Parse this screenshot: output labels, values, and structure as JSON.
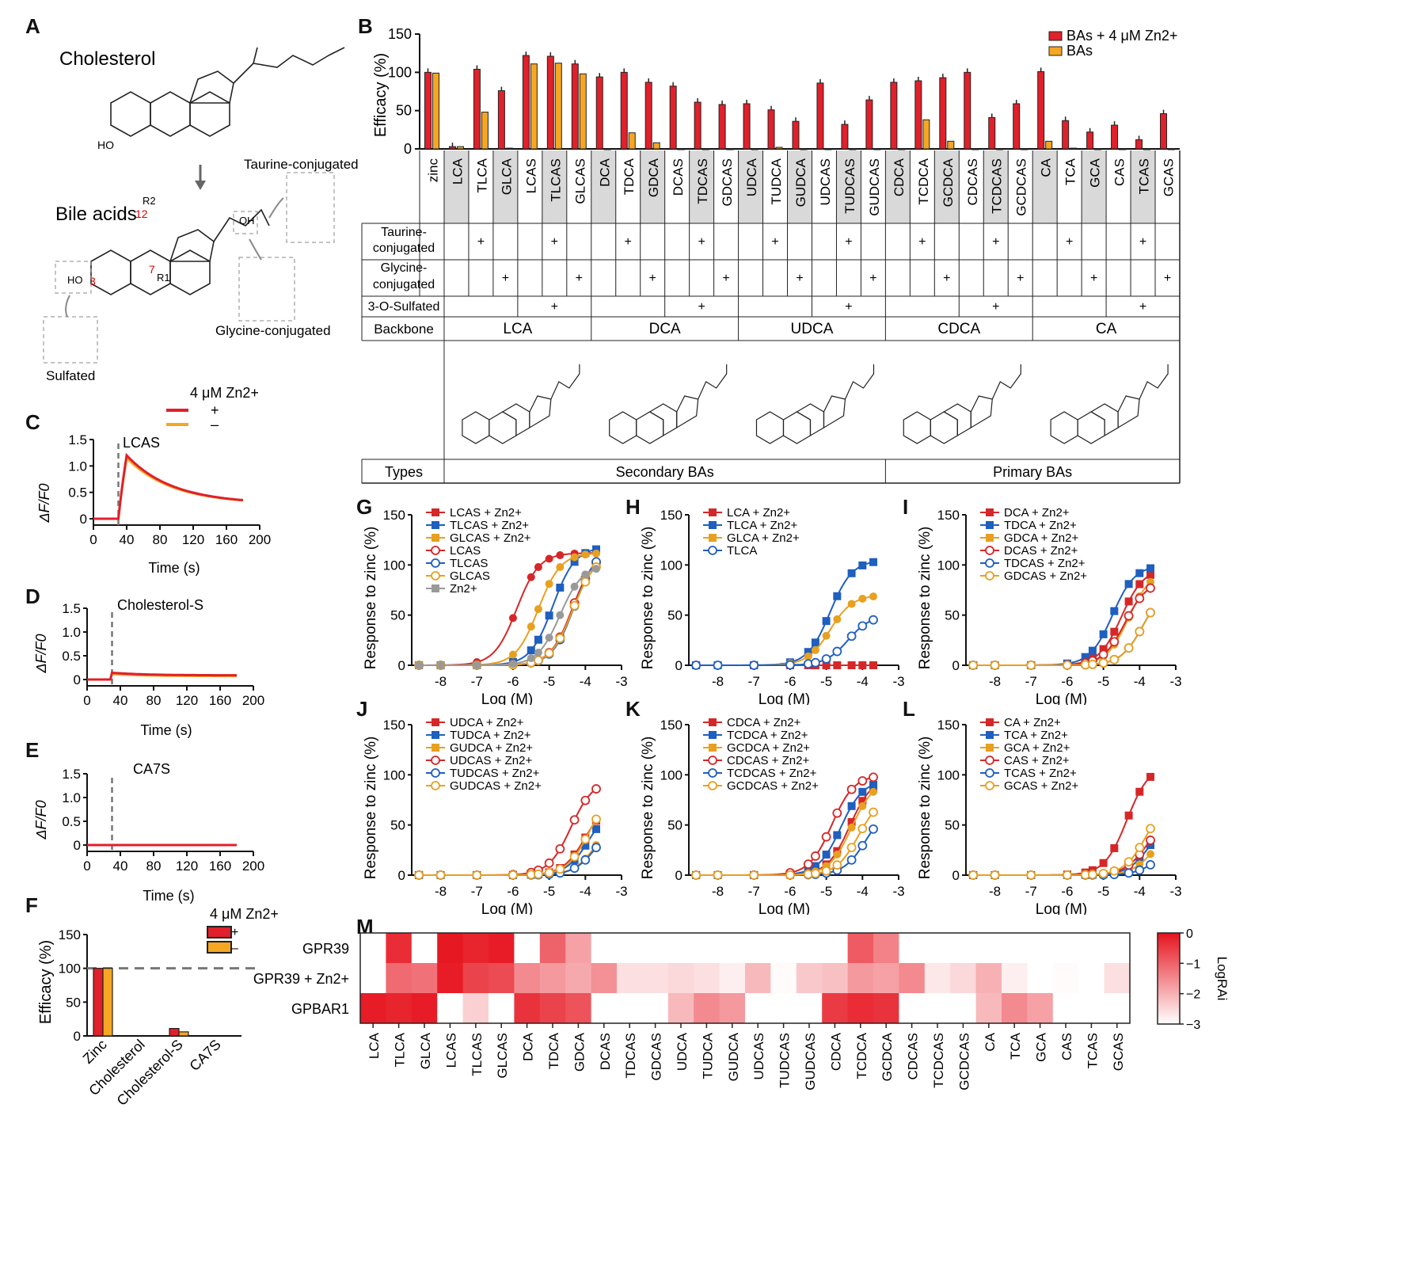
{
  "figure": {
    "panels": {
      "A": "A",
      "B": "B",
      "C": "C",
      "D": "D",
      "E": "E",
      "F": "F",
      "G": "G",
      "H": "H",
      "I": "I",
      "J": "J",
      "K": "K",
      "L": "L",
      "M": "M"
    }
  },
  "panel_a": {
    "cholesterol": "Cholesterol",
    "bile_acids": "Bile acids",
    "taurine": "Taurine-conjugated",
    "glycine": "Glycine-conjugated",
    "sulfated": "Sulfated",
    "pos3": "3",
    "pos7": "7",
    "pos12": "12",
    "r1": "R1",
    "r2": "R2",
    "ho": "HO",
    "oh": "OH"
  },
  "panel_b": {
    "ylabel": "Efficacy (%)",
    "legend": [
      "BAs + 4 μM Zn2+",
      "BAs"
    ],
    "colors": {
      "zinc": "#e0202a",
      "bas": "#f5a623"
    },
    "compounds": [
      "zinc",
      "LCA",
      "TLCA",
      "GLCA",
      "LCAS",
      "TLCAS",
      "GLCAS",
      "DCA",
      "TDCA",
      "GDCA",
      "DCAS",
      "TDCAS",
      "GDCAS",
      "UDCA",
      "TUDCA",
      "GUDCA",
      "UDCAS",
      "TUDCAS",
      "GUDCAS",
      "CDCA",
      "TCDCA",
      "GCDCA",
      "CDCAS",
      "TCDCAS",
      "GCDCAS",
      "CA",
      "TCA",
      "GCA",
      "CAS",
      "TCAS",
      "GCAS"
    ],
    "with_zinc": [
      100,
      3,
      104,
      76,
      122,
      121,
      111,
      94,
      100,
      87,
      82,
      61,
      58,
      59,
      51,
      36,
      86,
      32,
      64,
      87,
      89,
      93,
      100,
      41,
      59,
      101,
      37,
      22,
      31,
      12,
      46
    ],
    "without_zinc": [
      99,
      3,
      48,
      1,
      111,
      112,
      98,
      0,
      21,
      8,
      0,
      0,
      0,
      0,
      2,
      0,
      0,
      0,
      0,
      0,
      38,
      10,
      0,
      0,
      0,
      10,
      1,
      0,
      0,
      0,
      0
    ],
    "yticks": [
      "0",
      "50",
      "100",
      "150"
    ],
    "row_labels": {
      "taurine": "Taurine-conjugated",
      "glycine": "Glycine-conjugated",
      "sulfated": "3-O-Sulfated",
      "backbone": "Backbone",
      "types": "Types"
    },
    "backbones": [
      "LCA",
      "DCA",
      "UDCA",
      "CDCA",
      "CA"
    ],
    "types": [
      "Secondary BAs",
      "Primary BAs"
    ],
    "plus": "+"
  },
  "panel_c": {
    "label": "LCAS",
    "legend_title": "4 μM Zn2+",
    "plus": "+",
    "minus": "–",
    "ylabel": "ΔF/F0",
    "xlabel": "Time (s)",
    "xticks": [
      "0",
      "40",
      "80",
      "120",
      "160",
      "200"
    ],
    "yticks": [
      "0",
      "0.5",
      "1.0",
      "1.5"
    ]
  },
  "panel_d": {
    "label": "Cholesterol-S",
    "ylabel": "ΔF/F0",
    "xlabel": "Time (s)"
  },
  "panel_e": {
    "label": "CA7S",
    "ylabel": "ΔF/F0",
    "xlabel": "Time (s)"
  },
  "panel_f": {
    "legend_title": "4 μM Zn2+",
    "plus": "+",
    "minus": "–",
    "ylabel": "Efficacy (%)",
    "categories": [
      "Zinc",
      "Cholesterol",
      "Cholesterol-S",
      "CA7S"
    ],
    "with_zinc": [
      100,
      0,
      11,
      0
    ],
    "without_zinc": [
      100,
      0,
      6,
      0
    ],
    "yticks": [
      "0",
      "50",
      "100",
      "150"
    ]
  },
  "dose_panels": {
    "ylabel": "Response to zinc (%)",
    "xlabel": "Log (M)",
    "xticks": [
      "-8",
      "-7",
      "-6",
      "-5",
      "-4",
      "-3"
    ],
    "yticks": [
      "0",
      "50",
      "100",
      "150"
    ]
  },
  "chart_data": [
    {
      "panel": "G",
      "type": "line",
      "series": [
        {
          "name": "LCAS + Zn2+",
          "color": "#d62728",
          "filled": true,
          "ec50": -5.9,
          "top": 112
        },
        {
          "name": "TLCAS + Zn2+",
          "color": "#1f5fbf",
          "filled": true,
          "ec50": -4.9,
          "top": 118
        },
        {
          "name": "GLCAS + Zn2+",
          "color": "#e8a020",
          "filled": true,
          "ec50": -5.3,
          "top": 112
        },
        {
          "name": "LCAS",
          "color": "#d62728",
          "filled": false,
          "ec50": -4.35,
          "top": 115
        },
        {
          "name": "TLCAS",
          "color": "#1f5fbf",
          "filled": false,
          "ec50": -4.3,
          "top": 118
        },
        {
          "name": "GLCAS",
          "color": "#e8a020",
          "filled": false,
          "ec50": -4.35,
          "top": 110
        },
        {
          "name": "Zn2+",
          "color": "#999999",
          "filled": true,
          "ec50": -4.7,
          "top": 100
        }
      ]
    },
    {
      "panel": "H",
      "type": "line",
      "series": [
        {
          "name": "LCA + Zn2+",
          "color": "#d62728",
          "filled": true,
          "ec50": -2,
          "top": 0
        },
        {
          "name": "TLCA + Zn2+",
          "color": "#1f5fbf",
          "filled": true,
          "ec50": -4.9,
          "top": 105
        },
        {
          "name": "GLCA + Zn2+",
          "color": "#e8a020",
          "filled": true,
          "ec50": -4.9,
          "top": 70
        },
        {
          "name": "TLCA",
          "color": "#1f5fbf",
          "filled": false,
          "ec50": -4.4,
          "top": 50
        }
      ]
    },
    {
      "panel": "I",
      "type": "line",
      "series": [
        {
          "name": "DCA + Zn2+",
          "color": "#d62728",
          "filled": true,
          "ec50": -4.5,
          "top": 97
        },
        {
          "name": "TDCA + Zn2+",
          "color": "#1f5fbf",
          "filled": true,
          "ec50": -4.75,
          "top": 100
        },
        {
          "name": "GDCA + Zn2+",
          "color": "#e8a020",
          "filled": true,
          "ec50": -4.3,
          "top": 95
        },
        {
          "name": "DCAS + Zn2+",
          "color": "#d62728",
          "filled": false,
          "ec50": -4.4,
          "top": 85
        },
        {
          "name": "TDCAS + Zn2+",
          "color": "#1f5fbf",
          "filled": false,
          "ec50": -3.9,
          "top": 80
        },
        {
          "name": "GDCAS + Zn2+",
          "color": "#e8a020",
          "filled": false,
          "ec50": -3.9,
          "top": 80
        }
      ]
    },
    {
      "panel": "J",
      "type": "line",
      "series": [
        {
          "name": "UDCA + Zn2+",
          "color": "#d62728",
          "filled": true,
          "ec50": -4.0,
          "top": 75
        },
        {
          "name": "TUDCA + Zn2+",
          "color": "#1f5fbf",
          "filled": true,
          "ec50": -3.9,
          "top": 70
        },
        {
          "name": "GUDCA + Zn2+",
          "color": "#e8a020",
          "filled": true,
          "ec50": -3.7,
          "top": 60
        },
        {
          "name": "UDCAS + Zn2+",
          "color": "#d62728",
          "filled": false,
          "ec50": -4.4,
          "top": 95
        },
        {
          "name": "TUDCAS + Zn2+",
          "color": "#1f5fbf",
          "filled": false,
          "ec50": -3.7,
          "top": 55
        },
        {
          "name": "GUDCAS + Zn2+",
          "color": "#e8a020",
          "filled": false,
          "ec50": -3.9,
          "top": 85
        }
      ]
    },
    {
      "panel": "K",
      "type": "line",
      "series": [
        {
          "name": "CDCA + Zn2+",
          "color": "#d62728",
          "filled": true,
          "ec50": -4.35,
          "top": 98
        },
        {
          "name": "TCDCA + Zn2+",
          "color": "#1f5fbf",
          "filled": true,
          "ec50": -4.6,
          "top": 95
        },
        {
          "name": "GCDCA + Zn2+",
          "color": "#e8a020",
          "filled": true,
          "ec50": -4.3,
          "top": 95
        },
        {
          "name": "CDCAS + Zn2+",
          "color": "#d62728",
          "filled": false,
          "ec50": -4.85,
          "top": 100
        },
        {
          "name": "TCDCAS + Zn2+",
          "color": "#1f5fbf",
          "filled": false,
          "ec50": -3.9,
          "top": 70
        },
        {
          "name": "GCDCAS + Zn2+",
          "color": "#e8a020",
          "filled": false,
          "ec50": -4.1,
          "top": 80
        }
      ]
    },
    {
      "panel": "L",
      "type": "line",
      "series": [
        {
          "name": "CA + Zn2+",
          "color": "#d62728",
          "filled": true,
          "ec50": -4.35,
          "top": 110
        },
        {
          "name": "TCA + Zn2+",
          "color": "#1f5fbf",
          "filled": true,
          "ec50": -3.7,
          "top": 60
        },
        {
          "name": "GCA + Zn2+",
          "color": "#e8a020",
          "filled": true,
          "ec50": -3.6,
          "top": 50
        },
        {
          "name": "CAS + Zn2+",
          "color": "#d62728",
          "filled": false,
          "ec50": -3.8,
          "top": 60
        },
        {
          "name": "TCAS + Zn2+",
          "color": "#1f5fbf",
          "filled": false,
          "ec50": -3.5,
          "top": 30
        },
        {
          "name": "GCAS + Zn2+",
          "color": "#e8a020",
          "filled": false,
          "ec50": -3.8,
          "top": 80
        }
      ]
    }
  ],
  "panel_m": {
    "rows": [
      "GPR39",
      "GPR39 + Zn2+",
      "GPBAR1"
    ],
    "cols": [
      "LCA",
      "TLCA",
      "GLCA",
      "LCAS",
      "TLCAS",
      "GLCAS",
      "DCA",
      "TDCA",
      "GDCA",
      "DCAS",
      "TDCAS",
      "GDCAS",
      "UDCA",
      "TUDCA",
      "GUDCA",
      "UDCAS",
      "TUDCAS",
      "GUDCAS",
      "CDCA",
      "TCDCA",
      "GCDCA",
      "CDCAS",
      "TCDCAS",
      "GCDCAS",
      "CA",
      "TCA",
      "GCA",
      "CAS",
      "TCAS",
      "GCAS"
    ],
    "values": [
      [
        -3,
        -0.3,
        -3,
        -0.05,
        -0.2,
        -0.1,
        -3,
        -1.0,
        -1.8,
        -3,
        -3,
        -3,
        -3,
        -3,
        -3,
        -3,
        -3,
        -3,
        -3,
        -0.9,
        -1.4,
        -3,
        -3,
        -3,
        -3,
        -3,
        -3,
        -3,
        -3,
        -3
      ],
      [
        -3,
        -1.1,
        -1.2,
        -0.1,
        -0.6,
        -0.7,
        -1.5,
        -1.7,
        -1.9,
        -1.6,
        -2.6,
        -2.6,
        -2.5,
        -2.6,
        -2.8,
        -2.1,
        -2.95,
        -2.3,
        -2.2,
        -1.7,
        -1.8,
        -1.5,
        -2.7,
        -2.5,
        -2.0,
        -2.8,
        -3,
        -2.95,
        -3,
        -2.6
      ],
      [
        -0.1,
        -0.2,
        -0.1,
        -3,
        -2.4,
        -3,
        -0.4,
        -0.6,
        -0.8,
        -3,
        -3,
        -3,
        -2.1,
        -1.5,
        -1.7,
        -3,
        -3,
        -3,
        -0.5,
        -0.3,
        -0.4,
        -3,
        -3,
        -3,
        -2.1,
        -1.5,
        -1.8,
        -3,
        -3,
        -3
      ]
    ],
    "colorbar_label": "LogRAi",
    "colorbar_ticks": [
      "0",
      "−1",
      "−2",
      "−3"
    ]
  }
}
